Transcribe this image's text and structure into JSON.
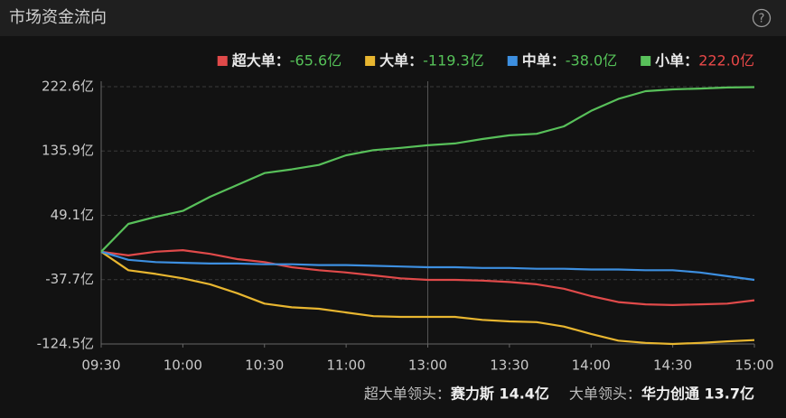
{
  "header": {
    "title": "市场资金流向",
    "help_icon": "?"
  },
  "chart_data": {
    "type": "line",
    "x": [
      0,
      10,
      20,
      30,
      40,
      50,
      60,
      70,
      80,
      90,
      100,
      110,
      120,
      130,
      140,
      150,
      160,
      170,
      180,
      190,
      200,
      210,
      220,
      230,
      240
    ],
    "xlim": [
      0,
      240
    ],
    "xticks": [
      {
        "value": 0,
        "label": "09:30"
      },
      {
        "value": 30,
        "label": "10:00"
      },
      {
        "value": 60,
        "label": "10:30"
      },
      {
        "value": 90,
        "label": "11:00"
      },
      {
        "value": 120,
        "label": "13:00"
      },
      {
        "value": 150,
        "label": "13:30"
      },
      {
        "value": 180,
        "label": "14:00"
      },
      {
        "value": 210,
        "label": "14:30"
      },
      {
        "value": 240,
        "label": "15:00"
      }
    ],
    "ylim": [
      -124.5,
      222.6
    ],
    "yticks": [
      {
        "value": 222.6,
        "label": "222.6亿"
      },
      {
        "value": 135.9,
        "label": "135.9亿"
      },
      {
        "value": 49.1,
        "label": "49.1亿"
      },
      {
        "value": -37.7,
        "label": "-37.7亿"
      },
      {
        "value": -124.5,
        "label": "-124.5亿"
      }
    ],
    "grid": true,
    "series": [
      {
        "name": "超大单：",
        "color": "#e04a4a",
        "label_color": "#55c158",
        "value_label": "-65.6亿",
        "last_value": -65.6,
        "values": [
          0,
          -5,
          0,
          2,
          -3,
          -10,
          -14,
          -21,
          -25,
          -28,
          -32,
          -36,
          -38,
          -38,
          -39,
          -41,
          -44,
          -50,
          -60,
          -68,
          -71,
          -72,
          -71,
          -70,
          -65.6
        ]
      },
      {
        "name": "大单：",
        "color": "#e8b630",
        "label_color": "#55c158",
        "value_label": "-119.3亿",
        "last_value": -119.3,
        "values": [
          0,
          -25,
          -30,
          -36,
          -44,
          -56,
          -70,
          -75,
          -77,
          -82,
          -87,
          -88,
          -88,
          -88,
          -92,
          -94,
          -95,
          -101,
          -111,
          -120,
          -123,
          -124.5,
          -123,
          -121,
          -119.3
        ]
      },
      {
        "name": "中单：",
        "color": "#3d8fe0",
        "label_color": "#55c158",
        "value_label": "-38.0亿",
        "last_value": -38.0,
        "values": [
          0,
          -11,
          -14,
          -15,
          -16,
          -16,
          -17,
          -17,
          -18,
          -18,
          -19,
          -20,
          -21,
          -21,
          -22,
          -22,
          -23,
          -23,
          -24,
          -24,
          -25,
          -25,
          -28,
          -33,
          -38.0
        ]
      },
      {
        "name": "小单：",
        "color": "#58c05a",
        "label_color": "#e84848",
        "value_label": "222.0亿",
        "last_value": 222.0,
        "values": [
          0,
          37.5,
          47,
          55,
          74,
          90,
          106,
          111,
          117,
          130,
          137,
          140,
          143.5,
          146,
          152,
          157,
          159,
          169,
          190,
          206,
          216.5,
          219,
          220,
          221.5,
          222.0
        ]
      }
    ]
  },
  "footer": {
    "items": [
      {
        "label": "超大单领头：",
        "value": "赛力斯 14.4亿"
      },
      {
        "label": "大单领头：",
        "value": "华力创通 13.7亿"
      }
    ]
  }
}
